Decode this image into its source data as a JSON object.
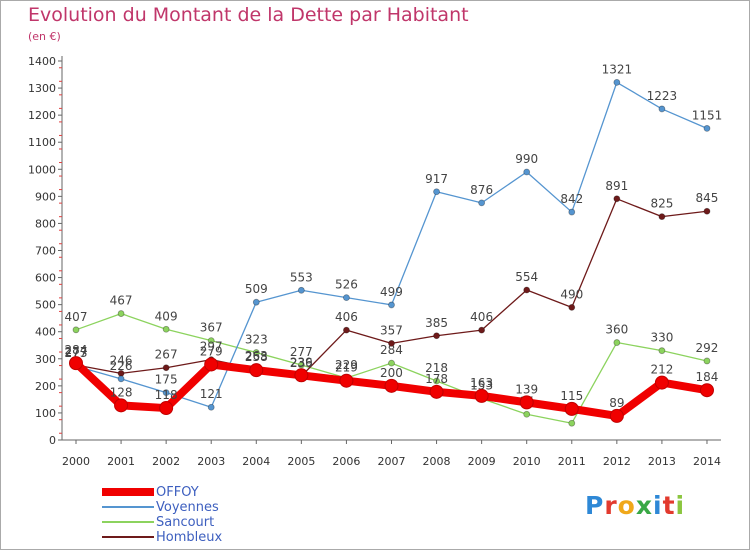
{
  "title": "Evolution du Montant de la Dette par Habitant",
  "unit_label": "(en €)",
  "logo": {
    "text": "Proxiti",
    "colors": [
      "#2e88d6",
      "#e23a2e",
      "#f0a81a",
      "#39a845",
      "#2e88d6",
      "#e23a2e",
      "#8bc63f"
    ]
  },
  "chart_data": {
    "type": "line",
    "title": "Evolution du Montant de la Dette par Habitant",
    "ylabel": "(en €)",
    "xlabel": "",
    "x": [
      2000,
      2001,
      2002,
      2003,
      2004,
      2005,
      2006,
      2007,
      2008,
      2009,
      2010,
      2011,
      2012,
      2013,
      2014
    ],
    "ylim": [
      0,
      1400
    ],
    "yticks": [
      0,
      100,
      200,
      300,
      400,
      500,
      600,
      700,
      800,
      900,
      1000,
      1100,
      1200,
      1300,
      1400
    ],
    "grid": false,
    "legend_position": "bottom-left",
    "series": [
      {
        "name": "Sancourt",
        "color": "#8cd35e",
        "values": [
          407,
          467,
          409,
          367,
          323,
          277,
          229,
          284,
          218,
          153,
          95,
          62,
          360,
          330,
          292
        ]
      },
      {
        "name": "Hombleux",
        "color": "#6e1a1a",
        "values": [
          277,
          246,
          267,
          297,
          263,
          236,
          406,
          357,
          385,
          406,
          554,
          490,
          891,
          825,
          845
        ]
      },
      {
        "name": "Voyennes",
        "color": "#5595d0",
        "values": [
          273,
          226,
          175,
          121,
          509,
          553,
          526,
          499,
          917,
          876,
          990,
          842,
          1321,
          1223,
          1151
        ]
      },
      {
        "name": "OFFOY",
        "color": "#f00000",
        "values": [
          284,
          128,
          118,
          279,
          258,
          239,
          219,
          200,
          178,
          163,
          139,
          115,
          89,
          212,
          184
        ]
      }
    ],
    "legend": [
      "OFFOY",
      "Voyennes",
      "Sancourt",
      "Hombleux"
    ]
  }
}
